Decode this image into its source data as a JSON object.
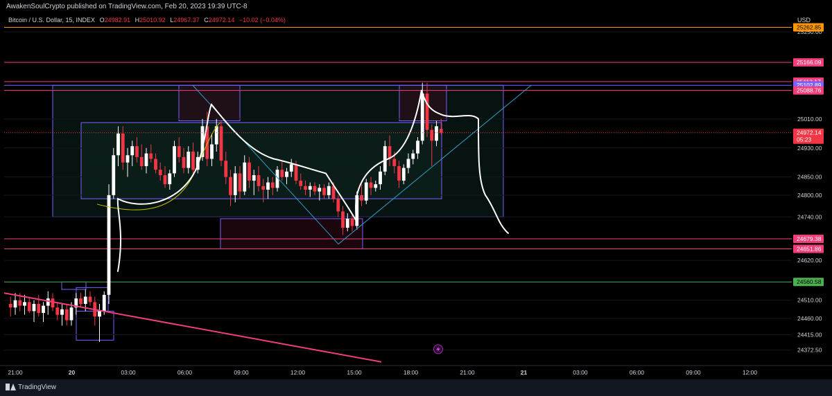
{
  "publisher_line": "AwakenSoulCrypto published on TradingView.com, Feb 20, 2023 19:39 UTC-8",
  "legend": {
    "symbol": "Bitcoin / U.S. Dollar, 15, INDEX",
    "o_label": "O",
    "o_value": "24982.91",
    "h_label": "H",
    "h_value": "25010.92",
    "l_label": "L",
    "l_value": "24967.37",
    "c_label": "C",
    "c_value": "24972.14",
    "change": "−10.02 (−0.04%)"
  },
  "currency": "USD",
  "footer": {
    "logo_text": "TradingView"
  },
  "colors": {
    "up": "#ffffff",
    "down": "#f23645",
    "orange": "#ff9800",
    "pink": "#f23d7b",
    "green": "#4caf50",
    "purple": "#7b61ff",
    "zone_fill": "#0f2b24",
    "supply_fill": "#3b0d1e"
  },
  "chart_data": {
    "type": "candlestick",
    "title": "Bitcoin / U.S. Dollar, 15, INDEX",
    "timeframe": "15",
    "ylim": [
      24330,
      25300
    ],
    "y_ticks": [
      25250,
      25170,
      25090,
      25010,
      24930,
      24850,
      24800,
      24740,
      24680,
      24620,
      24560,
      24510,
      24460,
      24415,
      24372.5
    ],
    "y_tick_labels": [
      "25250.00",
      "25170.00",
      "25090.00",
      "25010.00",
      "24930.00",
      "24850.00",
      "24800.00",
      "24740.00",
      "24680.00",
      "24620.00",
      "24560.00",
      "24510.00",
      "24460.00",
      "24415.00",
      "24372.50"
    ],
    "x_tick_labels": [
      "21:00",
      "20",
      "03:00",
      "06:00",
      "09:00",
      "12:00",
      "15:00",
      "18:00",
      "21:00",
      "21",
      "03:00",
      "06:00",
      "09:00",
      "12:00"
    ],
    "price_levels": [
      {
        "value": 25262.85,
        "label": "25262.85",
        "color": "#ff9800"
      },
      {
        "value": 25166.09,
        "label": "25166.09",
        "color": "#f23d7b"
      },
      {
        "value": 25113.17,
        "label": "25113.17",
        "color": "#f23d7b"
      },
      {
        "value": 25102.89,
        "label": "25102.89",
        "color": "#7b61ff"
      },
      {
        "value": 25088.76,
        "label": "25088.76",
        "color": "#f23d7b"
      },
      {
        "value": 24679.38,
        "label": "24679.38",
        "color": "#f23d7b"
      },
      {
        "value": 24651.86,
        "label": "24651.86",
        "color": "#f23d7b"
      },
      {
        "value": 24560.58,
        "label": "24560.58",
        "color": "#4caf50"
      }
    ],
    "last_price": {
      "label": "24972.14",
      "countdown": "05:23"
    },
    "candles": [
      {
        "t": "20:45",
        "o": 24500,
        "h": 24520,
        "l": 24465,
        "c": 24490
      },
      {
        "t": "21:00",
        "o": 24490,
        "h": 24530,
        "l": 24470,
        "c": 24510
      },
      {
        "t": "21:15",
        "o": 24510,
        "h": 24530,
        "l": 24480,
        "c": 24495
      },
      {
        "t": "21:30",
        "o": 24495,
        "h": 24525,
        "l": 24470,
        "c": 24505
      },
      {
        "t": "21:45",
        "o": 24505,
        "h": 24520,
        "l": 24475,
        "c": 24480
      },
      {
        "t": "22:00",
        "o": 24480,
        "h": 24510,
        "l": 24450,
        "c": 24500
      },
      {
        "t": "22:15",
        "o": 24500,
        "h": 24525,
        "l": 24465,
        "c": 24475
      },
      {
        "t": "22:30",
        "o": 24475,
        "h": 24505,
        "l": 24450,
        "c": 24495
      },
      {
        "t": "22:45",
        "o": 24495,
        "h": 24535,
        "l": 24470,
        "c": 24515
      },
      {
        "t": "23:00",
        "o": 24515,
        "h": 24530,
        "l": 24480,
        "c": 24490
      },
      {
        "t": "23:15",
        "o": 24490,
        "h": 24505,
        "l": 24455,
        "c": 24470
      },
      {
        "t": "23:30",
        "o": 24470,
        "h": 24500,
        "l": 24440,
        "c": 24485
      },
      {
        "t": "23:45",
        "o": 24485,
        "h": 24500,
        "l": 24440,
        "c": 24455
      },
      {
        "t": "00:00",
        "o": 24455,
        "h": 24505,
        "l": 24440,
        "c": 24490
      },
      {
        "t": "00:15",
        "o": 24490,
        "h": 24530,
        "l": 24470,
        "c": 24515
      },
      {
        "t": "00:30",
        "o": 24515,
        "h": 24530,
        "l": 24490,
        "c": 24500
      },
      {
        "t": "00:45",
        "o": 24500,
        "h": 24540,
        "l": 24480,
        "c": 24520
      },
      {
        "t": "01:00",
        "o": 24520,
        "h": 24535,
        "l": 24495,
        "c": 24505
      },
      {
        "t": "01:15",
        "o": 24505,
        "h": 24520,
        "l": 24440,
        "c": 24465
      },
      {
        "t": "01:30",
        "o": 24465,
        "h": 24500,
        "l": 24395,
        "c": 24480
      },
      {
        "t": "01:45",
        "o": 24480,
        "h": 24535,
        "l": 24470,
        "c": 24525
      },
      {
        "t": "02:00",
        "o": 24525,
        "h": 24830,
        "l": 24500,
        "c": 24800
      },
      {
        "t": "02:15",
        "o": 24800,
        "h": 24930,
        "l": 24790,
        "c": 24910
      },
      {
        "t": "02:30",
        "o": 24910,
        "h": 24990,
        "l": 24880,
        "c": 24970
      },
      {
        "t": "02:45",
        "o": 24970,
        "h": 24990,
        "l": 24870,
        "c": 24890
      },
      {
        "t": "03:00",
        "o": 24890,
        "h": 24930,
        "l": 24850,
        "c": 24910
      },
      {
        "t": "03:15",
        "o": 24910,
        "h": 24950,
        "l": 24880,
        "c": 24935
      },
      {
        "t": "03:30",
        "o": 24935,
        "h": 24960,
        "l": 24890,
        "c": 24905
      },
      {
        "t": "03:45",
        "o": 24905,
        "h": 24940,
        "l": 24870,
        "c": 24880
      },
      {
        "t": "04:00",
        "o": 24880,
        "h": 24930,
        "l": 24860,
        "c": 24915
      },
      {
        "t": "04:15",
        "o": 24915,
        "h": 24940,
        "l": 24890,
        "c": 24900
      },
      {
        "t": "04:30",
        "o": 24900,
        "h": 24915,
        "l": 24860,
        "c": 24870
      },
      {
        "t": "04:45",
        "o": 24870,
        "h": 24890,
        "l": 24840,
        "c": 24855
      },
      {
        "t": "05:00",
        "o": 24855,
        "h": 24880,
        "l": 24820,
        "c": 24830
      },
      {
        "t": "05:15",
        "o": 24830,
        "h": 24870,
        "l": 24815,
        "c": 24860
      },
      {
        "t": "05:30",
        "o": 24860,
        "h": 24950,
        "l": 24850,
        "c": 24935
      },
      {
        "t": "05:45",
        "o": 24935,
        "h": 24960,
        "l": 24890,
        "c": 24905
      },
      {
        "t": "06:00",
        "o": 24905,
        "h": 24930,
        "l": 24860,
        "c": 24875
      },
      {
        "t": "06:15",
        "o": 24875,
        "h": 24935,
        "l": 24860,
        "c": 24920
      },
      {
        "t": "06:30",
        "o": 24920,
        "h": 24945,
        "l": 24860,
        "c": 24870
      },
      {
        "t": "06:45",
        "o": 24870,
        "h": 24920,
        "l": 24860,
        "c": 24905
      },
      {
        "t": "07:00",
        "o": 24905,
        "h": 25010,
        "l": 24895,
        "c": 24990
      },
      {
        "t": "07:15",
        "o": 24990,
        "h": 25030,
        "l": 24880,
        "c": 24900
      },
      {
        "t": "07:30",
        "o": 24900,
        "h": 24970,
        "l": 24880,
        "c": 24940
      },
      {
        "t": "07:45",
        "o": 24940,
        "h": 25010,
        "l": 24920,
        "c": 24990
      },
      {
        "t": "08:00",
        "o": 24990,
        "h": 25005,
        "l": 24880,
        "c": 24895
      },
      {
        "t": "08:15",
        "o": 24895,
        "h": 24920,
        "l": 24830,
        "c": 24850
      },
      {
        "t": "08:30",
        "o": 24850,
        "h": 24870,
        "l": 24770,
        "c": 24800
      },
      {
        "t": "08:45",
        "o": 24800,
        "h": 24880,
        "l": 24780,
        "c": 24860
      },
      {
        "t": "09:00",
        "o": 24860,
        "h": 24880,
        "l": 24790,
        "c": 24810
      },
      {
        "t": "09:15",
        "o": 24810,
        "h": 24910,
        "l": 24800,
        "c": 24890
      },
      {
        "t": "09:30",
        "o": 24890,
        "h": 24905,
        "l": 24820,
        "c": 24840
      },
      {
        "t": "09:45",
        "o": 24840,
        "h": 24870,
        "l": 24800,
        "c": 24855
      },
      {
        "t": "10:00",
        "o": 24855,
        "h": 24880,
        "l": 24810,
        "c": 24825
      },
      {
        "t": "10:15",
        "o": 24825,
        "h": 24845,
        "l": 24780,
        "c": 24815
      },
      {
        "t": "10:30",
        "o": 24815,
        "h": 24850,
        "l": 24790,
        "c": 24835
      },
      {
        "t": "10:45",
        "o": 24835,
        "h": 24850,
        "l": 24800,
        "c": 24820
      },
      {
        "t": "11:00",
        "o": 24820,
        "h": 24880,
        "l": 24810,
        "c": 24870
      },
      {
        "t": "11:15",
        "o": 24870,
        "h": 24895,
        "l": 24840,
        "c": 24850
      },
      {
        "t": "11:30",
        "o": 24850,
        "h": 24875,
        "l": 24830,
        "c": 24865
      },
      {
        "t": "11:45",
        "o": 24865,
        "h": 24900,
        "l": 24850,
        "c": 24885
      },
      {
        "t": "12:00",
        "o": 24885,
        "h": 24895,
        "l": 24830,
        "c": 24840
      },
      {
        "t": "12:15",
        "o": 24840,
        "h": 24860,
        "l": 24815,
        "c": 24825
      },
      {
        "t": "12:30",
        "o": 24825,
        "h": 24840,
        "l": 24800,
        "c": 24815
      },
      {
        "t": "12:45",
        "o": 24815,
        "h": 24835,
        "l": 24795,
        "c": 24825
      },
      {
        "t": "13:00",
        "o": 24825,
        "h": 24835,
        "l": 24800,
        "c": 24810
      },
      {
        "t": "13:15",
        "o": 24810,
        "h": 24830,
        "l": 24785,
        "c": 24820
      },
      {
        "t": "13:30",
        "o": 24820,
        "h": 24830,
        "l": 24790,
        "c": 24800
      },
      {
        "t": "13:45",
        "o": 24800,
        "h": 24835,
        "l": 24790,
        "c": 24825
      },
      {
        "t": "14:00",
        "o": 24825,
        "h": 24835,
        "l": 24780,
        "c": 24790
      },
      {
        "t": "14:15",
        "o": 24790,
        "h": 24800,
        "l": 24740,
        "c": 24755
      },
      {
        "t": "14:30",
        "o": 24755,
        "h": 24770,
        "l": 24690,
        "c": 24710
      },
      {
        "t": "14:45",
        "o": 24710,
        "h": 24750,
        "l": 24700,
        "c": 24735
      },
      {
        "t": "15:00",
        "o": 24735,
        "h": 24745,
        "l": 24700,
        "c": 24715
      },
      {
        "t": "15:15",
        "o": 24715,
        "h": 24810,
        "l": 24705,
        "c": 24800
      },
      {
        "t": "15:30",
        "o": 24800,
        "h": 24830,
        "l": 24770,
        "c": 24785
      },
      {
        "t": "15:45",
        "o": 24785,
        "h": 24845,
        "l": 24775,
        "c": 24835
      },
      {
        "t": "16:00",
        "o": 24835,
        "h": 24850,
        "l": 24800,
        "c": 24820
      },
      {
        "t": "16:15",
        "o": 24820,
        "h": 24840,
        "l": 24810,
        "c": 24830
      },
      {
        "t": "16:30",
        "o": 24830,
        "h": 24880,
        "l": 24815,
        "c": 24865
      },
      {
        "t": "16:45",
        "o": 24865,
        "h": 24950,
        "l": 24855,
        "c": 24935
      },
      {
        "t": "17:00",
        "o": 24935,
        "h": 24965,
        "l": 24880,
        "c": 24900
      },
      {
        "t": "17:15",
        "o": 24900,
        "h": 24920,
        "l": 24860,
        "c": 24880
      },
      {
        "t": "17:30",
        "o": 24880,
        "h": 24895,
        "l": 24820,
        "c": 24840
      },
      {
        "t": "17:45",
        "o": 24840,
        "h": 24885,
        "l": 24830,
        "c": 24875
      },
      {
        "t": "18:00",
        "o": 24875,
        "h": 24915,
        "l": 24860,
        "c": 24900
      },
      {
        "t": "18:15",
        "o": 24900,
        "h": 24925,
        "l": 24885,
        "c": 24915
      },
      {
        "t": "18:30",
        "o": 24915,
        "h": 24960,
        "l": 24900,
        "c": 24950
      },
      {
        "t": "18:45",
        "o": 24950,
        "h": 25110,
        "l": 24940,
        "c": 25080
      },
      {
        "t": "19:00",
        "o": 25080,
        "h": 25110,
        "l": 24960,
        "c": 24980
      },
      {
        "t": "19:15",
        "o": 24980,
        "h": 24995,
        "l": 24880,
        "c": 24950
      },
      {
        "t": "19:30",
        "o": 24950,
        "h": 25005,
        "l": 24935,
        "c": 24990
      },
      {
        "t": "19:45",
        "o": 24982.91,
        "h": 25010.92,
        "l": 24967.37,
        "c": 24972.14
      }
    ]
  }
}
